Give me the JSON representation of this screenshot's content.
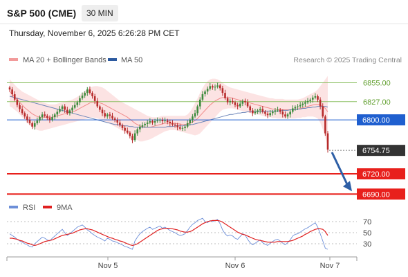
{
  "header": {
    "title": "S&P 500 (CME)",
    "interval": "30 MIN",
    "timestamp": "Thursday, November 6, 2025 6:26:28 PM CET"
  },
  "legend": {
    "price": [
      {
        "label": "MA 20 + Bollinger Bands",
        "color": "#f29a9a"
      },
      {
        "label": "MA 50",
        "color": "#2c5aa0"
      }
    ],
    "rsi": [
      {
        "label": "RSI",
        "color": "#6d8fd8"
      },
      {
        "label": "9MA",
        "color": "#e02020"
      }
    ]
  },
  "credit": "Research © 2025 Trading Central",
  "chart_data": [
    {
      "type": "candlestick",
      "y_range": [
        6680,
        6875
      ],
      "x_ticks": [
        "Nov 5",
        "Nov 6",
        "Nov 7"
      ],
      "levels": [
        {
          "label": "6855.00",
          "value": 6855,
          "kind": "resistance",
          "color": "#8cc063"
        },
        {
          "label": "6827.00",
          "value": 6827,
          "kind": "resistance",
          "color": "#8cc063"
        },
        {
          "label": "6800.00",
          "value": 6800,
          "kind": "pivot",
          "color": "#1f5fcf"
        },
        {
          "label": "6754.75",
          "value": 6754.75,
          "kind": "last",
          "color": "#333333"
        },
        {
          "label": "6720.00",
          "value": 6720,
          "kind": "support",
          "color": "#e8201c"
        },
        {
          "label": "6690.00",
          "value": 6690,
          "kind": "support",
          "color": "#e8201c"
        }
      ],
      "arrow": {
        "from": 6752,
        "to": 6690,
        "color": "#2e5fa6"
      },
      "close": [
        6845,
        6838,
        6830,
        6822,
        6816,
        6810,
        6805,
        6800,
        6795,
        6790,
        6795,
        6799,
        6804,
        6808,
        6806,
        6803,
        6800,
        6804,
        6808,
        6812,
        6816,
        6820,
        6815,
        6810,
        6814,
        6818,
        6822,
        6826,
        6832,
        6836,
        6840,
        6845,
        6840,
        6835,
        6828,
        6820,
        6815,
        6810,
        6805,
        6808,
        6806,
        6802,
        6800,
        6796,
        6792,
        6788,
        6784,
        6781,
        6776,
        6770,
        6780,
        6786,
        6790,
        6792,
        6794,
        6796,
        6798,
        6796,
        6798,
        6799,
        6800,
        6798,
        6799,
        6797,
        6795,
        6793,
        6792,
        6789,
        6787,
        6788,
        6790,
        6795,
        6800,
        6805,
        6810,
        6820,
        6830,
        6838,
        6842,
        6846,
        6850,
        6848,
        6849,
        6851,
        6847,
        6840,
        6832,
        6826,
        6828,
        6826,
        6822,
        6820,
        6824,
        6828,
        6826,
        6820,
        6814,
        6810,
        6812,
        6814,
        6816,
        6812,
        6809,
        6807,
        6810,
        6812,
        6814,
        6815,
        6812,
        6808,
        6805,
        6808,
        6812,
        6817,
        6819,
        6820,
        6822,
        6824,
        6826,
        6828,
        6830,
        6833,
        6835,
        6830,
        6820,
        6805,
        6780,
        6756
      ],
      "ma20": [
        6842,
        6838,
        6834,
        6830,
        6826,
        6822,
        6818,
        6815,
        6812,
        6809,
        6807,
        6805,
        6804,
        6804,
        6804,
        6804,
        6804,
        6804,
        6805,
        6806,
        6807,
        6808,
        6809,
        6810,
        6811,
        6812,
        6813,
        6815,
        6817,
        6819,
        6821,
        6823,
        6825,
        6826,
        6826,
        6826,
        6825,
        6824,
        6822,
        6820,
        6818,
        6816,
        6814,
        6812,
        6810,
        6808,
        6806,
        6804,
        6801,
        6798,
        6795,
        6793,
        6791,
        6790,
        6789,
        6789,
        6789,
        6790,
        6791,
        6792,
        6793,
        6794,
        6795,
        6795,
        6795,
        6795,
        6795,
        6794,
        6794,
        6793,
        6793,
        6794,
        6795,
        6797,
        6799,
        6802,
        6806,
        6810,
        6814,
        6818,
        6822,
        6825,
        6828,
        6830,
        6832,
        6833,
        6833,
        6833,
        6833,
        6832,
        6831,
        6830,
        6829,
        6828,
        6827,
        6826,
        6825,
        6824,
        6823,
        6822,
        6821,
        6820,
        6819,
        6818,
        6817,
        6816,
        6816,
        6815,
        6815,
        6815,
        6815,
        6815,
        6815,
        6815,
        6816,
        6816,
        6817,
        6818,
        6819,
        6820,
        6821,
        6822,
        6823,
        6823,
        6822,
        6820,
        6817,
        6812
      ],
      "bb_upper": [
        6860,
        6856,
        6852,
        6848,
        6845,
        6842,
        6840,
        6838,
        6836,
        6834,
        6832,
        6830,
        6828,
        6826,
        6825,
        6824,
        6823,
        6823,
        6823,
        6824,
        6825,
        6826,
        6827,
        6828,
        6829,
        6830,
        6832,
        6834,
        6837,
        6840,
        6843,
        6846,
        6848,
        6849,
        6850,
        6850,
        6849,
        6848,
        6846,
        6843,
        6840,
        6837,
        6834,
        6831,
        6828,
        6826,
        6824,
        6822,
        6820,
        6818,
        6816,
        6814,
        6812,
        6810,
        6808,
        6806,
        6805,
        6804,
        6804,
        6804,
        6805,
        6806,
        6806,
        6806,
        6806,
        6806,
        6806,
        6806,
        6806,
        6806,
        6806,
        6808,
        6812,
        6818,
        6825,
        6832,
        6840,
        6847,
        6853,
        6857,
        6860,
        6861,
        6861,
        6860,
        6858,
        6855,
        6852,
        6850,
        6848,
        6847,
        6846,
        6845,
        6844,
        6843,
        6842,
        6841,
        6840,
        6839,
        6838,
        6837,
        6836,
        6835,
        6834,
        6833,
        6832,
        6832,
        6831,
        6831,
        6831,
        6831,
        6830,
        6830,
        6830,
        6830,
        6830,
        6830,
        6831,
        6832,
        6834,
        6836,
        6838,
        6840,
        6842,
        6845,
        6850,
        6855,
        6860,
        6865
      ],
      "bb_lower": [
        6820,
        6818,
        6815,
        6812,
        6808,
        6804,
        6800,
        6796,
        6792,
        6789,
        6787,
        6785,
        6784,
        6784,
        6785,
        6786,
        6787,
        6788,
        6789,
        6790,
        6791,
        6792,
        6793,
        6794,
        6795,
        6796,
        6797,
        6798,
        6799,
        6800,
        6801,
        6802,
        6803,
        6804,
        6803,
        6802,
        6801,
        6800,
        6798,
        6796,
        6794,
        6792,
        6790,
        6788,
        6786,
        6784,
        6782,
        6780,
        6778,
        6775,
        6772,
        6770,
        6768,
        6768,
        6769,
        6770,
        6771,
        6773,
        6775,
        6777,
        6779,
        6781,
        6783,
        6784,
        6785,
        6785,
        6785,
        6784,
        6783,
        6782,
        6781,
        6780,
        6779,
        6778,
        6777,
        6778,
        6780,
        6784,
        6788,
        6792,
        6796,
        6800,
        6804,
        6808,
        6812,
        6815,
        6816,
        6817,
        6817,
        6817,
        6816,
        6815,
        6814,
        6813,
        6812,
        6811,
        6810,
        6809,
        6808,
        6808,
        6807,
        6806,
        6805,
        6804,
        6804,
        6803,
        6803,
        6802,
        6802,
        6802,
        6802,
        6802,
        6802,
        6802,
        6802,
        6803,
        6803,
        6804,
        6804,
        6805,
        6805,
        6805,
        6804,
        6802,
        6796,
        6786,
        6774,
        6760
      ],
      "ma50": [
        6835,
        6834,
        6833,
        6832,
        6831,
        6830,
        6829,
        6828,
        6827,
        6826,
        6825,
        6824,
        6823,
        6822,
        6821,
        6820,
        6819,
        6818,
        6817,
        6816,
        6815,
        6814,
        6813,
        6812,
        6811,
        6810,
        6809,
        6808,
        6807,
        6806,
        6805,
        6804,
        6803,
        6802,
        6801,
        6800,
        6799,
        6798,
        6797,
        6796,
        6795,
        6794,
        6793,
        6793,
        6792,
        6792,
        6791,
        6791,
        6790,
        6790,
        6789,
        6789,
        6789,
        6789,
        6789,
        6789,
        6789,
        6789,
        6789,
        6789,
        6789,
        6789,
        6789,
        6790,
        6790,
        6790,
        6791,
        6791,
        6791,
        6791,
        6792,
        6792,
        6793,
        6793,
        6794,
        6795,
        6796,
        6797,
        6798,
        6799,
        6800,
        6801,
        6802,
        6803,
        6804,
        6805,
        6806,
        6807,
        6808,
        6808,
        6809,
        6810,
        6810,
        6811,
        6811,
        6812,
        6812,
        6812,
        6812,
        6812,
        6812,
        6812,
        6813,
        6813,
        6813,
        6813,
        6813,
        6813,
        6813,
        6814,
        6814,
        6814,
        6815,
        6815,
        6815,
        6816,
        6816,
        6817,
        6817,
        6818,
        6818,
        6819,
        6819,
        6820,
        6820,
        6820,
        6820,
        6819
      ]
    },
    {
      "type": "line",
      "y_range": [
        10,
        85
      ],
      "y_ticks": [
        "70",
        "50",
        "30"
      ],
      "y_tick_values": [
        70,
        50,
        30
      ],
      "series": [
        {
          "name": "RSI",
          "color": "#6d8fd8",
          "values": [
            48,
            45,
            42,
            38,
            35,
            33,
            30,
            28,
            25,
            24,
            30,
            34,
            38,
            42,
            40,
            37,
            35,
            40,
            44,
            48,
            52,
            56,
            50,
            45,
            48,
            52,
            56,
            60,
            62,
            64,
            60,
            55,
            52,
            48,
            45,
            42,
            40,
            38,
            35,
            40,
            38,
            35,
            34,
            32,
            30,
            28,
            25,
            24,
            22,
            20,
            35,
            42,
            48,
            52,
            55,
            58,
            60,
            56,
            58,
            60,
            62,
            58,
            60,
            57,
            54,
            52,
            50,
            47,
            45,
            46,
            48,
            54,
            60,
            65,
            68,
            72,
            74,
            76,
            70,
            68,
            72,
            70,
            72,
            74,
            66,
            55,
            48,
            44,
            46,
            44,
            40,
            38,
            43,
            48,
            46,
            38,
            32,
            28,
            31,
            34,
            37,
            32,
            29,
            27,
            31,
            34,
            37,
            38,
            35,
            31,
            28,
            32,
            37,
            44,
            47,
            48,
            51,
            54,
            57,
            59,
            62,
            65,
            68,
            60,
            48,
            35,
            22,
            20
          ]
        },
        {
          "name": "9MA",
          "color": "#e02020",
          "values": [
            40,
            40,
            39,
            38,
            36,
            35,
            33,
            31,
            30,
            28,
            27,
            28,
            30,
            32,
            34,
            35,
            36,
            37,
            39,
            41,
            43,
            45,
            46,
            47,
            48,
            49,
            51,
            53,
            55,
            56,
            57,
            57,
            56,
            55,
            53,
            51,
            49,
            47,
            45,
            43,
            41,
            40,
            38,
            37,
            35,
            34,
            32,
            30,
            28,
            27,
            28,
            30,
            33,
            36,
            39,
            42,
            45,
            48,
            51,
            54,
            56,
            57,
            58,
            58,
            58,
            57,
            56,
            55,
            53,
            52,
            51,
            51,
            52,
            54,
            57,
            60,
            63,
            66,
            68,
            70,
            71,
            72,
            72,
            72,
            71,
            69,
            66,
            63,
            60,
            57,
            54,
            51,
            49,
            47,
            46,
            44,
            42,
            40,
            38,
            37,
            36,
            35,
            34,
            33,
            33,
            33,
            33,
            34,
            34,
            34,
            34,
            34,
            35,
            36,
            38,
            40,
            42,
            44,
            47,
            49,
            52,
            54,
            56,
            57,
            57,
            56,
            52,
            45
          ]
        }
      ]
    }
  ]
}
